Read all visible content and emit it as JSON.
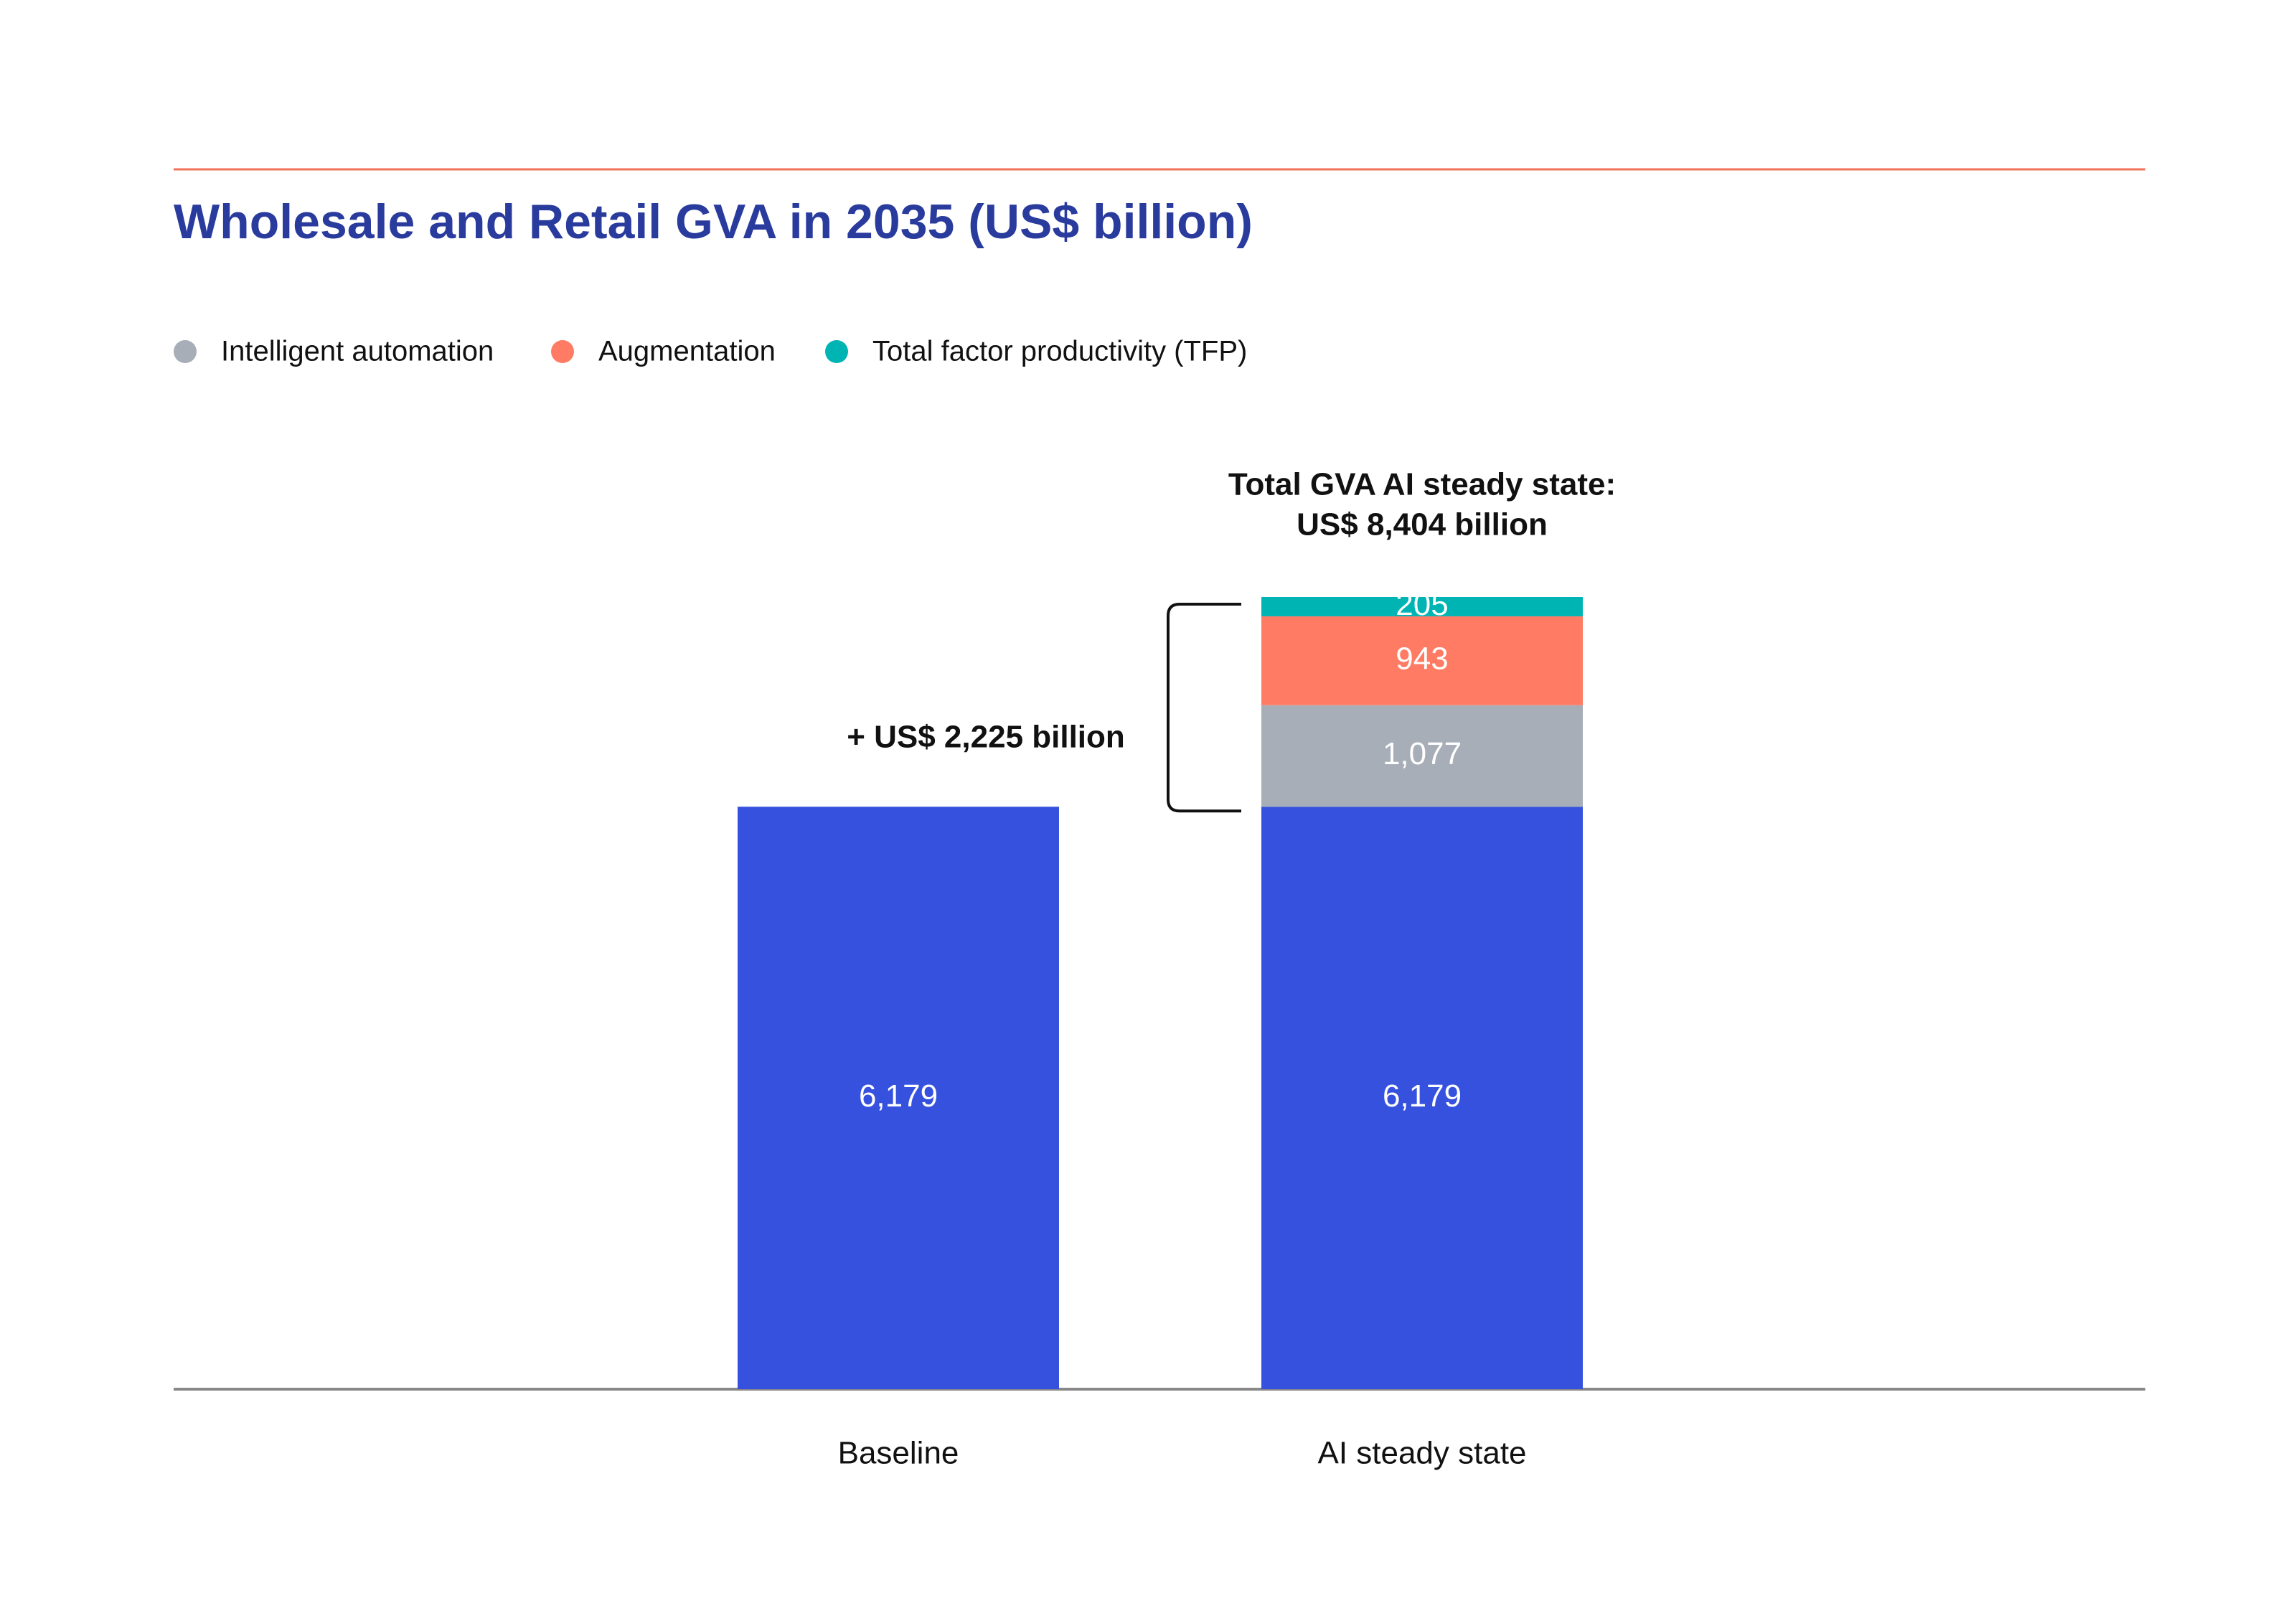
{
  "chart_data": {
    "type": "stacked-bar",
    "title": "Wholesale and Retail GVA in 2035 (US$ billion)",
    "categories": [
      "Baseline",
      "AI steady state"
    ],
    "series": [
      {
        "color": "#3651dd",
        "values": [
          6179,
          6179
        ],
        "value_labels": [
          "6,179",
          "6,179"
        ]
      },
      {
        "name": "Intelligent automation",
        "color": "#a7aeb8",
        "values": [
          null,
          1077
        ],
        "value_labels": [
          null,
          "1,077"
        ]
      },
      {
        "name": "Augmentation",
        "color": "#ff7b63",
        "values": [
          null,
          943
        ],
        "value_labels": [
          null,
          "943"
        ]
      },
      {
        "name": "Total factor productivity (TFP)",
        "color": "#00b4b4",
        "values": [
          null,
          205
        ],
        "value_labels": [
          null,
          "205"
        ]
      }
    ],
    "annotations": [
      "Total GVA AI steady state:",
      "US$ 8,404 billion",
      "+ US$ 2,225 billion"
    ]
  }
}
